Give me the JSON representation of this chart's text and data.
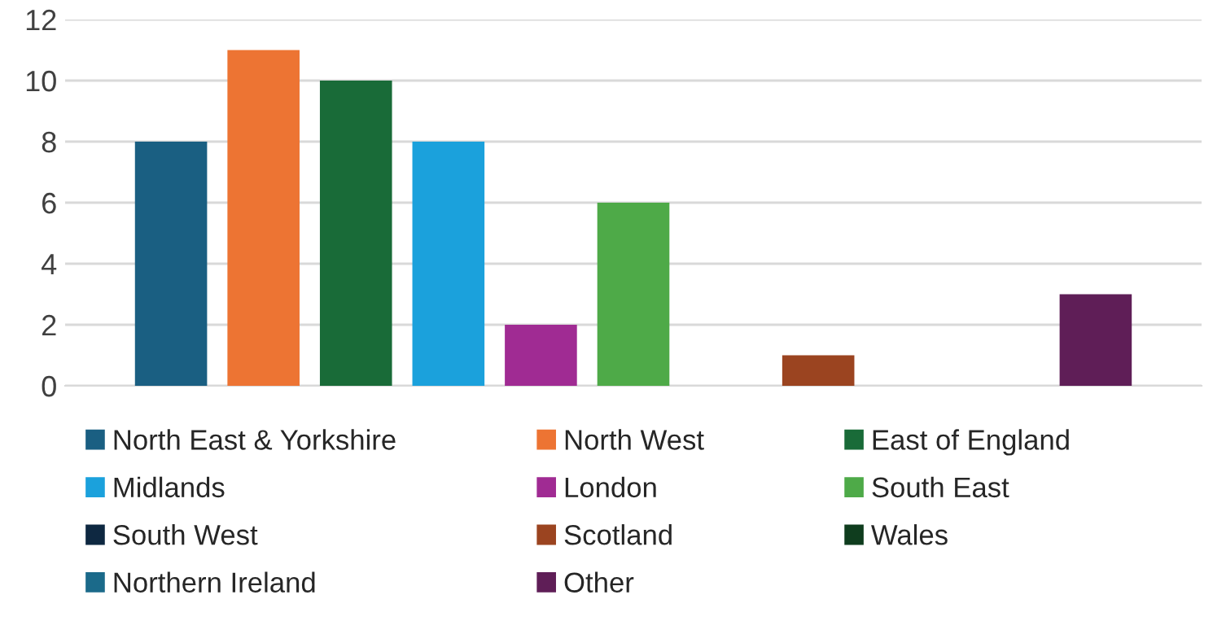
{
  "chart_data": {
    "type": "bar",
    "categories": [
      null
    ],
    "series": [
      {
        "name": "North East & Yorkshire",
        "color": "#1a5f82",
        "values": [
          8
        ]
      },
      {
        "name": "North West",
        "color": "#ed7433",
        "values": [
          11
        ]
      },
      {
        "name": "East of England",
        "color": "#196b38",
        "values": [
          10
        ]
      },
      {
        "name": "Midlands",
        "color": "#1ba1dc",
        "values": [
          8
        ]
      },
      {
        "name": "London",
        "color": "#a02b93",
        "values": [
          2
        ]
      },
      {
        "name": "South East",
        "color": "#4eaa48",
        "values": [
          6
        ]
      },
      {
        "name": "South West",
        "color": "#0e2841",
        "values": [
          0
        ]
      },
      {
        "name": "Scotland",
        "color": "#9b4420",
        "values": [
          1
        ]
      },
      {
        "name": "Wales",
        "color": "#0f3d1e",
        "values": [
          0
        ]
      },
      {
        "name": "Northern Ireland",
        "color": "#1b6a8a",
        "values": [
          0
        ]
      },
      {
        "name": "Other",
        "color": "#5f1e57",
        "values": [
          3
        ]
      }
    ],
    "ylim": [
      0,
      12
    ],
    "yticks": [
      0,
      2,
      4,
      6,
      8,
      10,
      12
    ],
    "grid": "y",
    "legend": "bottom"
  }
}
